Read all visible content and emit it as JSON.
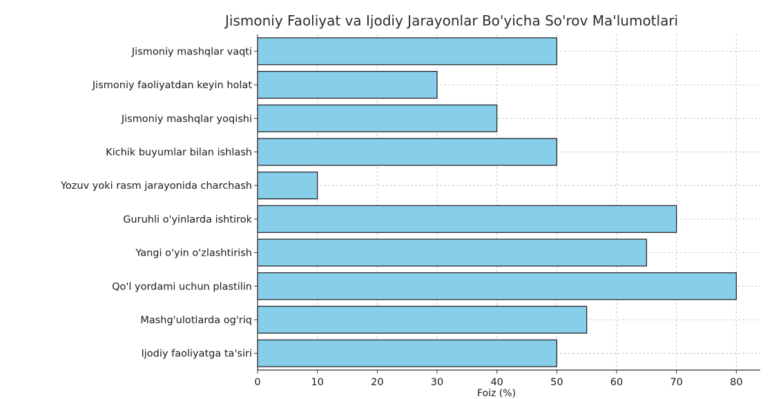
{
  "chart_data": {
    "type": "bar",
    "orientation": "horizontal",
    "title": "Jismoniy Faoliyat va Ijodiy Jarayonlar Bo'yicha So'rov Ma'lumotlari",
    "xlabel": "Foiz (%)",
    "ylabel": "",
    "xlim": [
      0,
      84
    ],
    "xticks": [
      0,
      10,
      20,
      30,
      40,
      50,
      60,
      70,
      80
    ],
    "grid": true,
    "bar_color": "#87ceeb",
    "edge_color": "#1a1a1a",
    "categories": [
      "Jismoniy mashqlar vaqti",
      "Jismoniy faoliyatdan keyin holat",
      "Jismoniy mashqlar yoqishi",
      "Kichik buyumlar bilan ishlash",
      "Yozuv yoki rasm jarayonida charchash",
      "Guruhli o'yinlarda ishtirok",
      "Yangi o'yin o'zlashtirish",
      "Qo'l yordami uchun plastilin",
      "Mashg'ulotlarda og'riq",
      "Ijodiy faoliyatga ta'siri"
    ],
    "values": [
      50,
      30,
      40,
      50,
      10,
      70,
      65,
      80,
      55,
      50
    ]
  }
}
